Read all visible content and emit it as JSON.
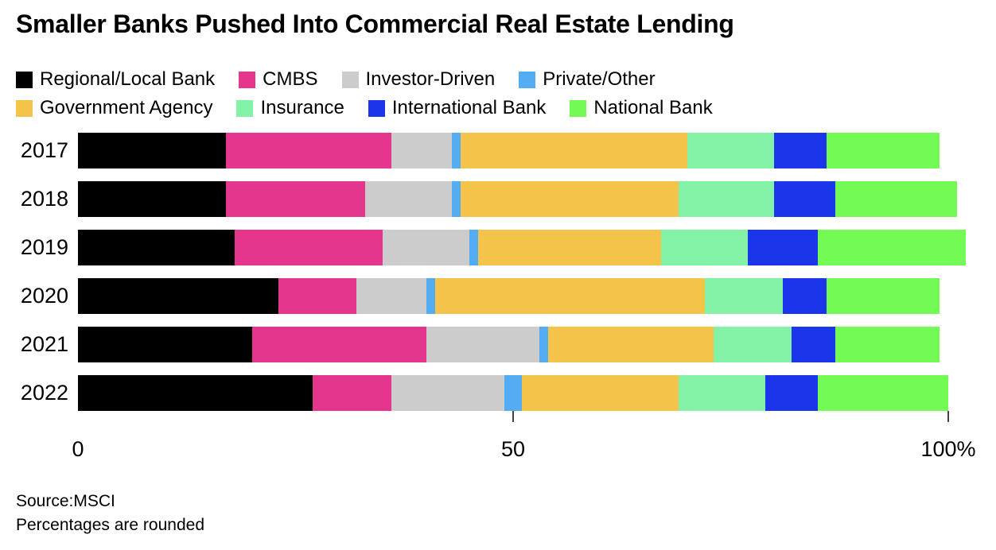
{
  "title": "Smaller Banks Pushed Into Commercial Real Estate Lending",
  "source_line1": "Source:MSCI",
  "source_line2": "Percentages are rounded",
  "chart_data": {
    "type": "bar",
    "orientation": "horizontal-stacked",
    "title": "Smaller Banks Pushed Into Commercial Real Estate Lending",
    "xlabel": "",
    "ylabel": "",
    "xlim": [
      0,
      100
    ],
    "unit": "percent",
    "grid": false,
    "legend_position": "top",
    "categories": [
      "2017",
      "2018",
      "2019",
      "2020",
      "2021",
      "2022"
    ],
    "series": [
      {
        "name": "Regional/Local Bank",
        "color": "#000000",
        "values": [
          17,
          17,
          18,
          23,
          20,
          27
        ]
      },
      {
        "name": "CMBS",
        "color": "#e3368c",
        "values": [
          19,
          16,
          17,
          9,
          20,
          9
        ]
      },
      {
        "name": "Investor-Driven",
        "color": "#cccccc",
        "values": [
          7,
          10,
          10,
          8,
          13,
          13
        ]
      },
      {
        "name": "Private/Other",
        "color": "#54acf2",
        "values": [
          1,
          1,
          1,
          1,
          1,
          2
        ]
      },
      {
        "name": "Government Agency",
        "color": "#f4c44a",
        "values": [
          26,
          25,
          21,
          31,
          19,
          18
        ]
      },
      {
        "name": "Insurance",
        "color": "#83f2a6",
        "values": [
          10,
          11,
          10,
          9,
          9,
          10
        ]
      },
      {
        "name": "International Bank",
        "color": "#1b35eb",
        "values": [
          6,
          7,
          8,
          5,
          5,
          6
        ]
      },
      {
        "name": "National Bank",
        "color": "#74fa55",
        "values": [
          13,
          14,
          17,
          13,
          12,
          15
        ]
      }
    ],
    "legend_rows": [
      [
        0,
        1,
        2,
        3
      ],
      [
        4,
        5,
        6,
        7
      ]
    ],
    "axis_ticks": [
      {
        "value": 0,
        "label": "0",
        "mark": false
      },
      {
        "value": 50,
        "label": "50",
        "mark": true
      },
      {
        "value": 100,
        "label": "100%",
        "mark": true
      }
    ]
  }
}
